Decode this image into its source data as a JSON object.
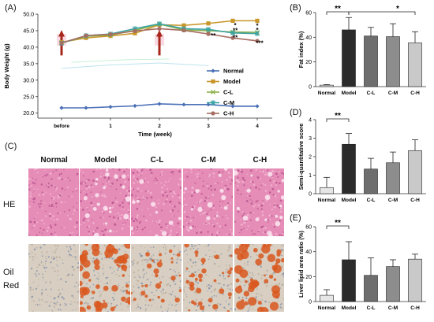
{
  "panel_labels": {
    "a": "(A)",
    "b": "(B)",
    "c": "(C)",
    "d": "(D)",
    "e": "(E)"
  },
  "chart_data": [
    {
      "id": "A",
      "type": "line",
      "ylabel": "Body Weight (g)",
      "xlabel": "Time (week)",
      "categories": [
        "before",
        "1",
        "2",
        "3",
        "4"
      ],
      "ylim": [
        18.5,
        50
      ],
      "yticks": [
        "20.0",
        "25.0",
        "30.0",
        "35.0",
        "40.0",
        "45.0",
        "50.0"
      ],
      "series": [
        {
          "name": "Normal",
          "color": "#4a6fb5",
          "marker": "diamond",
          "x": [
            0,
            0.5,
            1,
            1.5,
            2,
            2.5,
            3,
            3.5,
            4
          ],
          "values": [
            21.6,
            21.6,
            21.9,
            22.2,
            22.8,
            22.6,
            22.6,
            22.1,
            22.1
          ]
        },
        {
          "name": "Model",
          "color": "#c9962a",
          "marker": "square",
          "x": [
            0,
            0.5,
            1,
            1.5,
            2,
            2.5,
            3,
            3.5,
            4
          ],
          "values": [
            41.5,
            42.8,
            43.4,
            44.2,
            46.8,
            46.6,
            47.2,
            48.0,
            48.0
          ]
        },
        {
          "name": "C-L",
          "color": "#8ab04a",
          "marker": "x",
          "x": [
            0,
            0.5,
            1,
            1.5,
            2,
            2.5,
            3,
            3.5,
            4
          ],
          "values": [
            41.3,
            43.3,
            43.7,
            45.1,
            47.0,
            45.2,
            45.0,
            44.6,
            44.5
          ]
        },
        {
          "name": "C-M",
          "color": "#3aa3a6",
          "marker": "star",
          "x": [
            0,
            0.5,
            1,
            1.5,
            2,
            2.5,
            3,
            3.5,
            4
          ],
          "values": [
            41.2,
            43.5,
            44.0,
            45.6,
            47.1,
            45.6,
            45.4,
            44.3,
            44.1
          ]
        },
        {
          "name": "C-H",
          "color": "#a66d62",
          "marker": "circle",
          "x": [
            0,
            0.5,
            1,
            1.5,
            2,
            2.5,
            3,
            3.5,
            4
          ],
          "values": [
            41.3,
            43.5,
            43.9,
            44.9,
            45.6,
            45.1,
            44.0,
            42.8,
            41.9
          ]
        }
      ],
      "annotations": [
        {
          "text": "*",
          "x": 3.55,
          "y": 46.0
        },
        {
          "text": "*",
          "x": 4.0,
          "y": 45.8
        },
        {
          "text": "*",
          "x": 4.0,
          "y": 44.5
        },
        {
          "text": "**",
          "x": 3.1,
          "y": 42.8
        },
        {
          "text": "**",
          "x": 3.55,
          "y": 42.3
        },
        {
          "text": "**",
          "x": 3.55,
          "y": 44.4
        },
        {
          "text": "***",
          "x": 4.05,
          "y": 40.6
        }
      ],
      "arrow_color": "#a8261b"
    },
    {
      "id": "B",
      "type": "bar",
      "ylabel": "Fat index (%)",
      "categories": [
        "Normal",
        "Model",
        "C-L",
        "C-M",
        "C-H"
      ],
      "values": [
        1.2,
        46.0,
        41.0,
        40.5,
        35.5
      ],
      "errors": [
        0.4,
        10.0,
        7.0,
        10.5,
        9.0
      ],
      "ylim": [
        0,
        60
      ],
      "yticks": [
        "0",
        "20",
        "40",
        "60"
      ],
      "colors": [
        "#e6e6e6",
        "#2b2b2b",
        "#6e6e6e",
        "#8d8d8d",
        "#c9c9c9"
      ],
      "significance": [
        {
          "text": "**",
          "from": 0,
          "to": 1
        },
        {
          "text": "*",
          "from": 1,
          "to": 4
        }
      ]
    },
    {
      "id": "D",
      "type": "bar",
      "ylabel": "Semi-quantitative score",
      "categories": [
        "Normal",
        "Model",
        "C-L",
        "C-M",
        "C-H"
      ],
      "values": [
        0.33,
        2.67,
        1.33,
        1.67,
        2.33
      ],
      "errors": [
        0.55,
        0.58,
        0.58,
        0.58,
        0.58
      ],
      "ylim": [
        0,
        4
      ],
      "yticks": [
        "0",
        "1",
        "2",
        "3",
        "4"
      ],
      "colors": [
        "#e6e6e6",
        "#2b2b2b",
        "#6e6e6e",
        "#8d8d8d",
        "#c9c9c9"
      ],
      "significance": [
        {
          "text": "**",
          "from": 0,
          "to": 1
        }
      ]
    },
    {
      "id": "E",
      "type": "bar",
      "ylabel": "Liver lipid area ratio (%)",
      "categories": [
        "Normal",
        "Model",
        "C-L",
        "C-M",
        "C-H"
      ],
      "values": [
        5.0,
        33.5,
        21.0,
        28.0,
        34.0
      ],
      "errors": [
        4.5,
        14.5,
        14.0,
        5.5,
        4.0
      ],
      "ylim": [
        0,
        60
      ],
      "yticks": [
        "0",
        "20",
        "40",
        "60"
      ],
      "colors": [
        "#e6e6e6",
        "#2b2b2b",
        "#6e6e6e",
        "#8d8d8d",
        "#c9c9c9"
      ],
      "significance": [
        {
          "text": "**",
          "from": 0,
          "to": 1
        }
      ]
    }
  ],
  "histology": {
    "columns": [
      "Normal",
      "Model",
      "C-L",
      "C-M",
      "C-H"
    ],
    "rows": [
      "HE",
      "Oil\nRed"
    ],
    "he_bg": "#e58db7",
    "oil_bg": "#d8cfc2",
    "droplet_color": "#d9581e"
  }
}
